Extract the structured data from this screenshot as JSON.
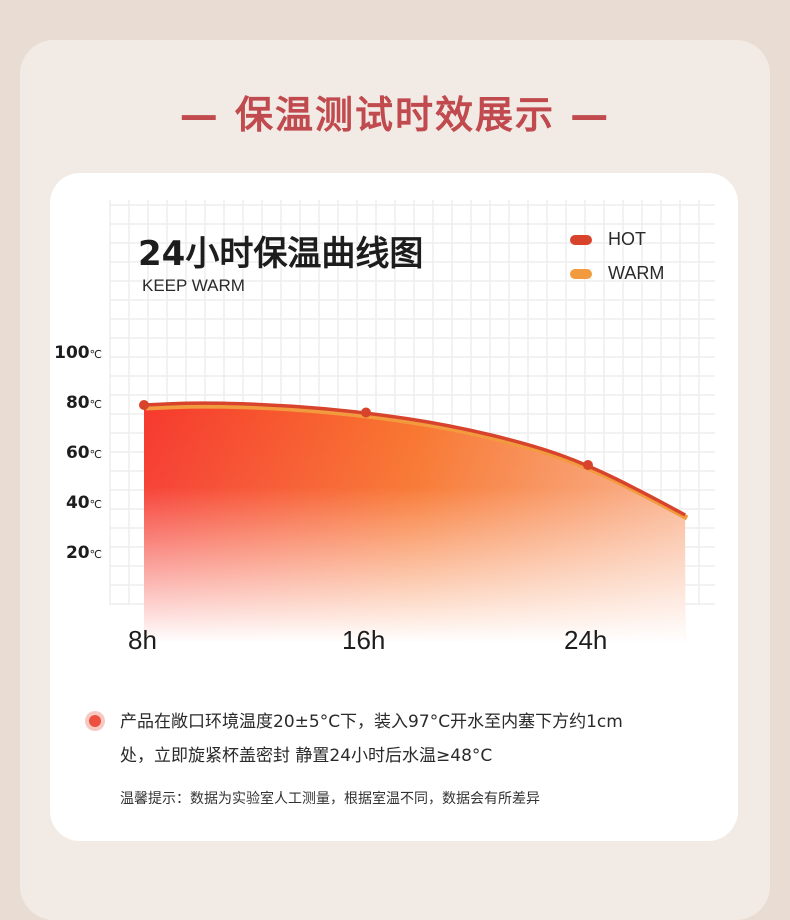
{
  "heading": "— 保温测试时效展示 —",
  "chart_data": {
    "type": "area",
    "title": "24小时保温曲线图",
    "subtitle": "KEEP WARM",
    "legend": [
      {
        "name": "HOT",
        "color": "#d8432c"
      },
      {
        "name": "WARM",
        "color": "#f29a3e"
      }
    ],
    "legend_placement": "top-right",
    "y_ticks": [
      {
        "value": 100,
        "unit": "℃"
      },
      {
        "value": 80,
        "unit": "℃"
      },
      {
        "value": 60,
        "unit": "℃"
      },
      {
        "value": 40,
        "unit": "℃"
      },
      {
        "value": 20,
        "unit": "℃"
      }
    ],
    "x_ticks": [
      "8h",
      "16h",
      "24h"
    ],
    "xlim": [
      8,
      28
    ],
    "ylim": [
      0,
      100
    ],
    "grid": true,
    "series": [
      {
        "name": "HOT",
        "x": [
          8,
          16,
          24
        ],
        "y": [
          80,
          77,
          56
        ]
      }
    ],
    "curve": [
      [
        8,
        80
      ],
      [
        10,
        81
      ],
      [
        13,
        80
      ],
      [
        16,
        77
      ],
      [
        19,
        72
      ],
      [
        22,
        64
      ],
      [
        24,
        56
      ],
      [
        26,
        45
      ],
      [
        27.5,
        36
      ]
    ]
  },
  "note": {
    "line1": "产品在敞口环境温度20±5°C下，装入97°C开水至内塞下方约1cm",
    "line2": "处，立即旋紧杯盖密封 静置24小时后水温≥48°C"
  },
  "tip": "温馨提示：数据为实验室人工测量，根据室温不同，数据会有所差异"
}
